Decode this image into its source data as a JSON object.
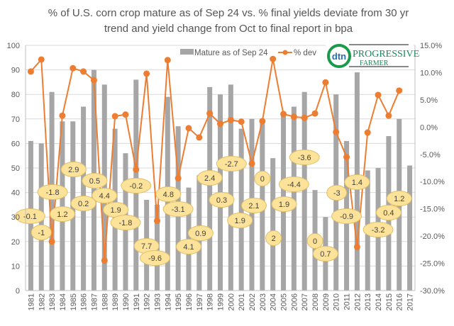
{
  "chart_data": {
    "type": "bar+line",
    "title": [
      "% of U.S. corn crop mature as of Sep 24 vs. % final yields deviate from 30 yr",
      "trend and yield change from Oct to final report in bpa"
    ],
    "categories": [
      "1981",
      "1982",
      "1983",
      "1984",
      "1985",
      "1986",
      "1987",
      "1988",
      "1989",
      "1990",
      "1991",
      "1992",
      "1993",
      "1994",
      "1995",
      "1996",
      "1997",
      "1998",
      "1999",
      "2000",
      "2001",
      "2002",
      "2003",
      "2004",
      "2005",
      "2006",
      "2007",
      "2008",
      "2009",
      "2010",
      "2011",
      "2012",
      "2013",
      "2014",
      "2015",
      "2016",
      "2017"
    ],
    "series": [
      {
        "name": "Mature as of Sep 24",
        "type": "bar",
        "axis": "left",
        "color": "#a6a6a6",
        "values": [
          61,
          60,
          81,
          69,
          69,
          75,
          90,
          84,
          66,
          56,
          86,
          37,
          35,
          79,
          67,
          42,
          47,
          83,
          80,
          84,
          66,
          70,
          70,
          54,
          72,
          75,
          81,
          41,
          30,
          80,
          61,
          89,
          49,
          50,
          63,
          70,
          51
        ]
      },
      {
        "name": "% dev",
        "type": "line",
        "axis": "right",
        "color": "#ed7d31",
        "values": [
          10.2,
          12.4,
          -21.0,
          2.1,
          10.8,
          10.2,
          8.6,
          -24.5,
          2.0,
          2.3,
          -7.8,
          9.8,
          -17.2,
          12.3,
          -9.4,
          -0.2,
          -1.9,
          2.5,
          0.6,
          1.3,
          1.0,
          -6.7,
          1.1,
          12.5,
          2.4,
          1.9,
          1.7,
          2.5,
          8.2,
          -0.9,
          -5.5,
          -22.0,
          -1.0,
          5.9,
          2.1,
          6.7,
          null
        ]
      }
    ],
    "data_labels": [
      "-0.1",
      "-1",
      "-1.8",
      "1.2",
      "2.9",
      "0.2",
      "0.5",
      "4.4",
      "1.9",
      "-1.8",
      "-0.2",
      "7.7",
      "-9.6",
      "4.8",
      "-3.1",
      "4.1",
      "0.9",
      "2.4",
      "0.3",
      "-2.7",
      "1.9",
      "2.1",
      "0",
      "2",
      "1.9",
      "-4.4",
      "-3.6",
      "0",
      "0.7",
      "-3",
      "-0.9",
      "1.4",
      null,
      "-3.2",
      "0.4",
      "1.2",
      null
    ],
    "left_axis": {
      "ylim": [
        0,
        100
      ],
      "ticks": [
        "0",
        "10",
        "20",
        "30",
        "40",
        "50",
        "60",
        "70",
        "80",
        "90",
        "100"
      ]
    },
    "right_axis": {
      "ylim": [
        -30,
        15
      ],
      "ticks": [
        "-30.0%",
        "-25.0%",
        "-20.0%",
        "-15.0%",
        "-10.0%",
        "-5.0%",
        "0.0%",
        "5.0%",
        "10.0%",
        "15.0%"
      ]
    },
    "grid": true,
    "legend": "top-center",
    "label_color": "#fde29a"
  },
  "logo": {
    "left": "dtn",
    "right_top": "The PROGRESSIVE",
    "right_bottom": "FARMER"
  }
}
